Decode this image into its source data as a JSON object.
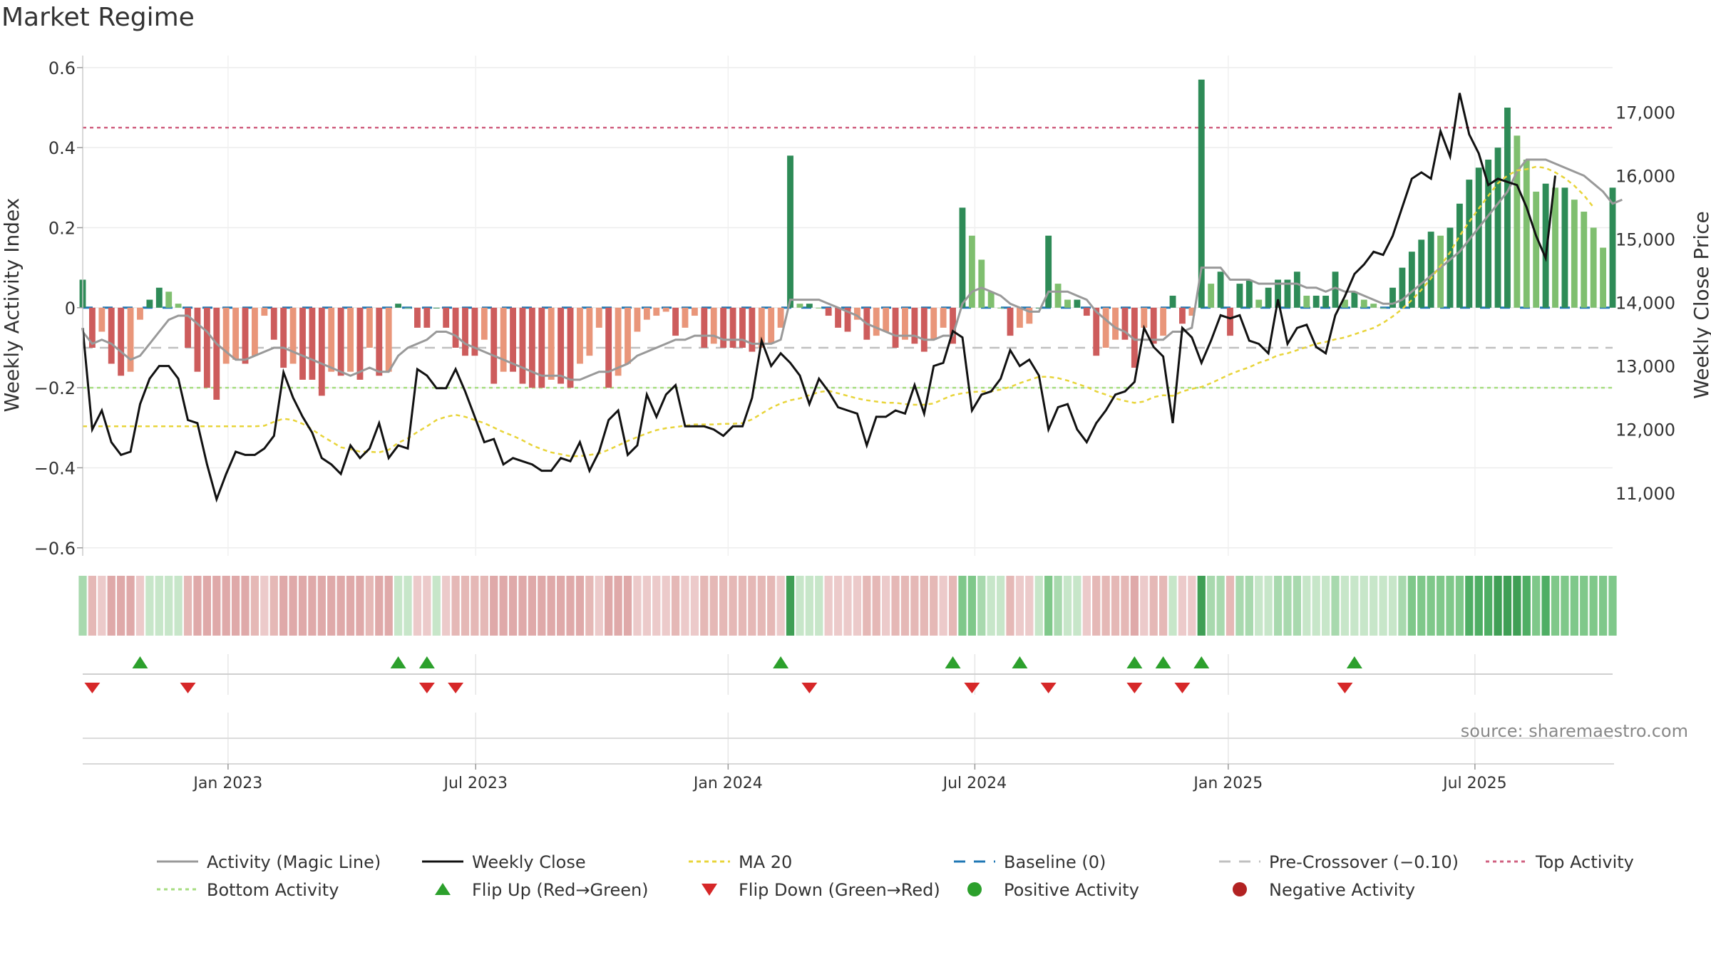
{
  "chart_data": {
    "type": "bar",
    "title": "Market Regime",
    "ylabel_left": "Weekly Activity Index",
    "ylabel_right": "Weekly Close Price",
    "left_axis": {
      "ylim": [
        -0.62,
        0.63
      ],
      "ticks": [
        0.6,
        0.4,
        0.2,
        0,
        -0.2,
        -0.4,
        -0.6
      ],
      "tick_labels": [
        "0.6",
        "0.4",
        "0.2",
        "0",
        "−0.2",
        "−0.4",
        "−0.6"
      ]
    },
    "right_axis": {
      "ylim": [
        10010,
        17890
      ],
      "ticks": [
        17000,
        16000,
        15000,
        14000,
        13000,
        12000,
        11000
      ],
      "tick_labels": [
        "17,000",
        "16,000",
        "15,000",
        "14,000",
        "13,000",
        "12,000",
        "11,000"
      ]
    },
    "x_tick_labels": [
      "Jan 2023",
      "Jul 2023",
      "Jan 2024",
      "Jul 2024",
      "Jan 2025",
      "Jul 2025"
    ],
    "x_tick_index": [
      15.2,
      41.1,
      67.5,
      93.3,
      119.8,
      145.6
    ],
    "reference_lines": {
      "top_activity": 0.45,
      "pre_crossover": -0.1,
      "bottom_activity": -0.2,
      "baseline": 0
    },
    "activity": [
      0.07,
      -0.1,
      -0.06,
      -0.14,
      -0.17,
      -0.16,
      -0.03,
      0.02,
      0.05,
      0.04,
      0.01,
      -0.1,
      -0.16,
      -0.2,
      -0.23,
      -0.14,
      -0.13,
      -0.14,
      -0.12,
      -0.02,
      -0.08,
      -0.15,
      -0.14,
      -0.18,
      -0.18,
      -0.22,
      -0.16,
      -0.17,
      -0.16,
      -0.18,
      -0.1,
      -0.17,
      -0.16,
      0.01,
      0.0,
      -0.05,
      -0.05,
      0.0,
      -0.05,
      -0.1,
      -0.12,
      -0.12,
      -0.08,
      -0.19,
      -0.16,
      -0.16,
      -0.19,
      -0.2,
      -0.2,
      -0.18,
      -0.19,
      -0.2,
      -0.14,
      -0.12,
      -0.05,
      -0.2,
      -0.17,
      -0.14,
      -0.06,
      -0.03,
      -0.02,
      -0.01,
      -0.07,
      -0.05,
      -0.02,
      -0.1,
      -0.09,
      -0.1,
      -0.1,
      -0.1,
      -0.11,
      -0.1,
      -0.09,
      -0.05,
      0.38,
      0.01,
      0.01,
      0.0,
      -0.02,
      -0.05,
      -0.06,
      -0.03,
      -0.08,
      -0.07,
      -0.06,
      -0.1,
      -0.08,
      -0.09,
      -0.11,
      -0.08,
      -0.05,
      -0.09,
      0.25,
      0.18,
      0.12,
      0.04,
      0.0,
      -0.07,
      -0.05,
      -0.04,
      0.0,
      0.18,
      0.06,
      0.02,
      0.02,
      -0.02,
      -0.12,
      -0.1,
      -0.08,
      -0.08,
      -0.15,
      -0.05,
      -0.09,
      -0.07,
      0.03,
      -0.04,
      -0.02,
      0.57,
      0.06,
      0.09,
      -0.07,
      0.06,
      0.07,
      0.02,
      0.05,
      0.07,
      0.07,
      0.09,
      0.03,
      0.03,
      0.03,
      0.09,
      0.02,
      0.04,
      0.02,
      0.01,
      0.0,
      0.05,
      0.1,
      0.14,
      0.17,
      0.19,
      0.18,
      0.2,
      0.26,
      0.32,
      0.35,
      0.37,
      0.4,
      0.5,
      0.43,
      0.37,
      0.29,
      0.31,
      0.3,
      0.3,
      0.27,
      0.24,
      0.2,
      0.15,
      0.3
    ],
    "activity_magic_line": [
      -0.06,
      -0.09,
      -0.08,
      -0.09,
      -0.11,
      -0.13,
      -0.12,
      -0.09,
      -0.06,
      -0.03,
      -0.02,
      -0.02,
      -0.04,
      -0.06,
      -0.09,
      -0.11,
      -0.13,
      -0.13,
      -0.12,
      -0.11,
      -0.1,
      -0.1,
      -0.11,
      -0.12,
      -0.13,
      -0.14,
      -0.15,
      -0.16,
      -0.17,
      -0.16,
      -0.15,
      -0.16,
      -0.16,
      -0.12,
      -0.1,
      -0.09,
      -0.08,
      -0.06,
      -0.06,
      -0.07,
      -0.09,
      -0.1,
      -0.11,
      -0.12,
      -0.13,
      -0.14,
      -0.15,
      -0.16,
      -0.17,
      -0.17,
      -0.17,
      -0.18,
      -0.18,
      -0.17,
      -0.16,
      -0.16,
      -0.15,
      -0.14,
      -0.12,
      -0.11,
      -0.1,
      -0.09,
      -0.08,
      -0.08,
      -0.07,
      -0.07,
      -0.07,
      -0.08,
      -0.08,
      -0.08,
      -0.09,
      -0.09,
      -0.09,
      -0.08,
      0.02,
      0.02,
      0.02,
      0.02,
      0.01,
      0.0,
      -0.01,
      -0.02,
      -0.04,
      -0.05,
      -0.06,
      -0.07,
      -0.07,
      -0.07,
      -0.08,
      -0.08,
      -0.07,
      -0.07,
      0.01,
      0.04,
      0.05,
      0.04,
      0.03,
      0.01,
      0.0,
      -0.01,
      -0.01,
      0.04,
      0.04,
      0.04,
      0.03,
      0.02,
      -0.01,
      -0.03,
      -0.05,
      -0.06,
      -0.08,
      -0.08,
      -0.08,
      -0.08,
      -0.06,
      -0.06,
      -0.05,
      0.1,
      0.1,
      0.1,
      0.07,
      0.07,
      0.07,
      0.06,
      0.06,
      0.06,
      0.06,
      0.06,
      0.05,
      0.05,
      0.04,
      0.05,
      0.04,
      0.04,
      0.03,
      0.02,
      0.01,
      0.01,
      0.02,
      0.04,
      0.06,
      0.08,
      0.1,
      0.12,
      0.14,
      0.17,
      0.2,
      0.23,
      0.26,
      0.29,
      0.34,
      0.37,
      0.37,
      0.37,
      0.36,
      0.35,
      0.34,
      0.33,
      0.31,
      0.29,
      0.26,
      0.27
    ],
    "weekly_close": [
      13600,
      12000,
      12300,
      11800,
      11600,
      11650,
      12400,
      12800,
      13000,
      13000,
      12800,
      12150,
      12100,
      11450,
      10900,
      11300,
      11650,
      11600,
      11600,
      11700,
      11900,
      12900,
      12500,
      12200,
      11950,
      11550,
      11450,
      11300,
      11750,
      11550,
      11700,
      12100,
      11550,
      11750,
      11700,
      12950,
      12850,
      12650,
      12650,
      12950,
      12600,
      12200,
      11800,
      11850,
      11450,
      11550,
      11500,
      11450,
      11350,
      11350,
      11550,
      11500,
      11800,
      11350,
      11650,
      12150,
      12300,
      11600,
      11750,
      12550,
      12200,
      12550,
      12700,
      12050,
      12050,
      12050,
      12000,
      11900,
      12050,
      12050,
      12500,
      13400,
      13000,
      13200,
      13050,
      12850,
      12400,
      12800,
      12600,
      12350,
      12300,
      12250,
      11750,
      12200,
      12200,
      12300,
      12250,
      12700,
      12250,
      13000,
      13050,
      13550,
      13450,
      12300,
      12550,
      12600,
      12800,
      13250,
      13000,
      13100,
      12850,
      12000,
      12350,
      12400,
      12000,
      11800,
      12100,
      12300,
      12550,
      12600,
      12750,
      13600,
      13300,
      13150,
      12100,
      13600,
      13450,
      13050,
      13400,
      13800,
      13750,
      13800,
      13400,
      13350,
      13200,
      14050,
      13350,
      13600,
      13650,
      13300,
      13200,
      13800,
      14100,
      14450,
      14600,
      14800,
      14750,
      15050,
      15500,
      15950,
      16050,
      15950,
      16700,
      16300,
      17300,
      16650,
      16350,
      15850,
      15950,
      15900,
      15850,
      15500,
      15050,
      14700,
      16000
    ],
    "ma20": [
      12050,
      12050,
      12050,
      12050,
      12050,
      12050,
      12050,
      12050,
      12050,
      12050,
      12050,
      12050,
      12050,
      12050,
      12050,
      12050,
      12050,
      12050,
      12050,
      12060,
      12120,
      12170,
      12150,
      12090,
      12000,
      11900,
      11810,
      11720,
      11690,
      11650,
      11650,
      11640,
      11680,
      11790,
      11860,
      11960,
      12050,
      12150,
      12200,
      12230,
      12200,
      12150,
      12100,
      12030,
      11960,
      11900,
      11830,
      11750,
      11690,
      11640,
      11610,
      11580,
      11580,
      11600,
      11620,
      11680,
      11750,
      11820,
      11880,
      11940,
      11990,
      12020,
      12040,
      12060,
      12080,
      12080,
      12080,
      12090,
      12090,
      12100,
      12160,
      12250,
      12340,
      12410,
      12460,
      12490,
      12540,
      12590,
      12610,
      12570,
      12530,
      12490,
      12460,
      12440,
      12420,
      12420,
      12400,
      12390,
      12390,
      12410,
      12480,
      12540,
      12570,
      12590,
      12600,
      12600,
      12630,
      12670,
      12730,
      12780,
      12830,
      12830,
      12810,
      12770,
      12720,
      12670,
      12600,
      12550,
      12490,
      12450,
      12420,
      12440,
      12510,
      12540,
      12530,
      12600,
      12640,
      12670,
      12730,
      12800,
      12870,
      12930,
      12980,
      13050,
      13100,
      13170,
      13200,
      13250,
      13300,
      13350,
      13380,
      13420,
      13450,
      13500,
      13550,
      13600,
      13680,
      13780,
      13900,
      14040,
      14200,
      14380,
      14580,
      14790,
      15050,
      15270,
      15480,
      15680,
      15880,
      16000,
      16080,
      16100,
      16140,
      16120,
      16050,
      15960,
      15840,
      15690,
      15500
    ],
    "flip_up_index": [
      6,
      33,
      36,
      73,
      91,
      98,
      110,
      113,
      117,
      133
    ],
    "flip_down_index": [
      1,
      11,
      36,
      39,
      76,
      93,
      101,
      110,
      115,
      132
    ],
    "legend": [
      "Activity (Magic Line)",
      "Weekly Close",
      "MA 20",
      "Baseline (0)",
      "Pre-Crossover (−0.10)",
      "Top Activity",
      "Bottom Activity",
      "Flip Up (Red→Green)",
      "Flip Down (Green→Red)",
      "Positive Activity",
      "Negative Activity"
    ],
    "legend_position": "bottom",
    "grid": true
  },
  "source_note": "source: sharemaestro.com",
  "colors": {
    "positive_strong": "#2e8b57",
    "positive_light": "#7fbf6f",
    "negative_strong": "#cd5c5c",
    "negative_light": "#e9967a",
    "magic_line": "#999999",
    "close": "#111111",
    "ma20": "#e8d43a",
    "baseline": "#1f77b4",
    "pre_crossover": "#c0c0c0",
    "top_activity": "#d06080",
    "bottom_activity": "#a6dd80",
    "flip_up": "#2ca02c",
    "flip_down": "#d62728",
    "positive_marker": "#2ca02c",
    "negative_marker": "#b22222"
  }
}
